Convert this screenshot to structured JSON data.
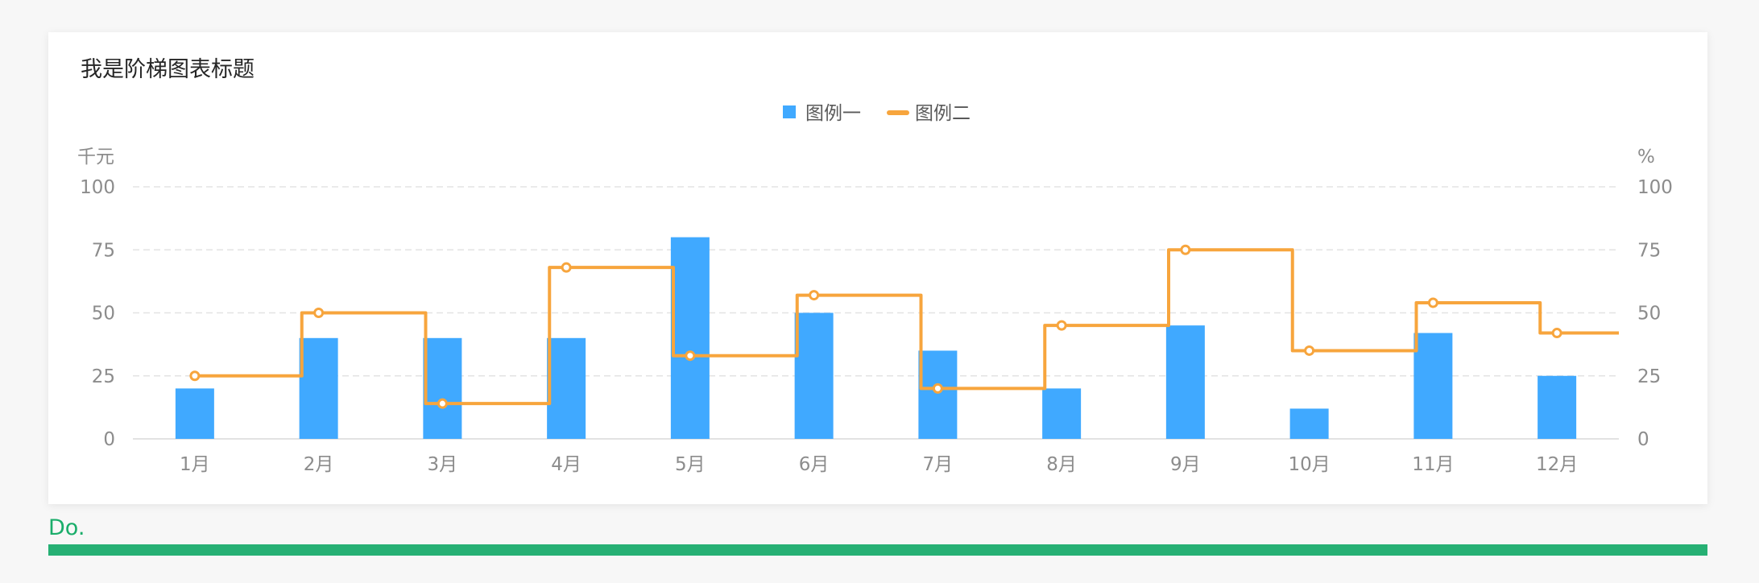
{
  "chart_data": {
    "type": "bar",
    "title": "我是阶梯图表标题",
    "categories": [
      "1月",
      "2月",
      "3月",
      "4月",
      "5月",
      "6月",
      "7月",
      "8月",
      "9月",
      "10月",
      "11月",
      "12月"
    ],
    "series": [
      {
        "name": "图例一",
        "kind": "bar",
        "axis": "left",
        "color": "#40a9ff",
        "values": [
          20,
          40,
          40,
          40,
          80,
          50,
          35,
          20,
          45,
          12,
          42,
          25
        ]
      },
      {
        "name": "图例二",
        "kind": "step-line",
        "axis": "right",
        "color": "#f7a53d",
        "values": [
          25,
          50,
          14,
          68,
          33,
          57,
          20,
          45,
          75,
          35,
          54,
          42
        ]
      }
    ],
    "y_left": {
      "unit": "千元",
      "ylim": [
        0,
        100
      ],
      "ticks": [
        0,
        25,
        50,
        75,
        100
      ]
    },
    "y_right": {
      "unit": "%",
      "ylim": [
        0,
        100
      ],
      "ticks": [
        0,
        25,
        50,
        75,
        100
      ]
    },
    "grid": true,
    "legend": "top-center"
  },
  "caption": "Do."
}
